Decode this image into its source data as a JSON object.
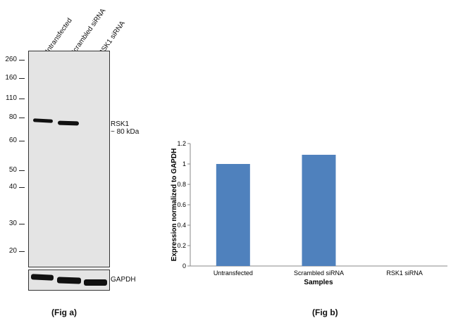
{
  "western_blot": {
    "lanes": [
      "Untransfected",
      "Scrambled siRNA",
      "RSK1 siRNA"
    ],
    "mw_markers": [
      "260",
      "160",
      "110",
      "80",
      "60",
      "50",
      "40",
      "30",
      "20"
    ],
    "target_label": "RSK1",
    "target_size": "~ 80 kDa",
    "loading_control": "GAPDH",
    "caption": "(Fig a)"
  },
  "chart_data": {
    "type": "bar",
    "categories": [
      "Untransfected",
      "Scrambled siRNA",
      "RSK1 siRNA"
    ],
    "values": [
      1.0,
      1.09,
      0
    ],
    "xlabel": "Samples",
    "ylabel": "Expression  normalized to GAPDH",
    "ylim": [
      0,
      1.2
    ],
    "yticks": [
      "0",
      "0.2",
      "0.4",
      "0.6",
      "0.8",
      "1",
      "1.2"
    ],
    "bar_color": "#4f81bd",
    "grid": false,
    "caption": "(Fig b)"
  }
}
